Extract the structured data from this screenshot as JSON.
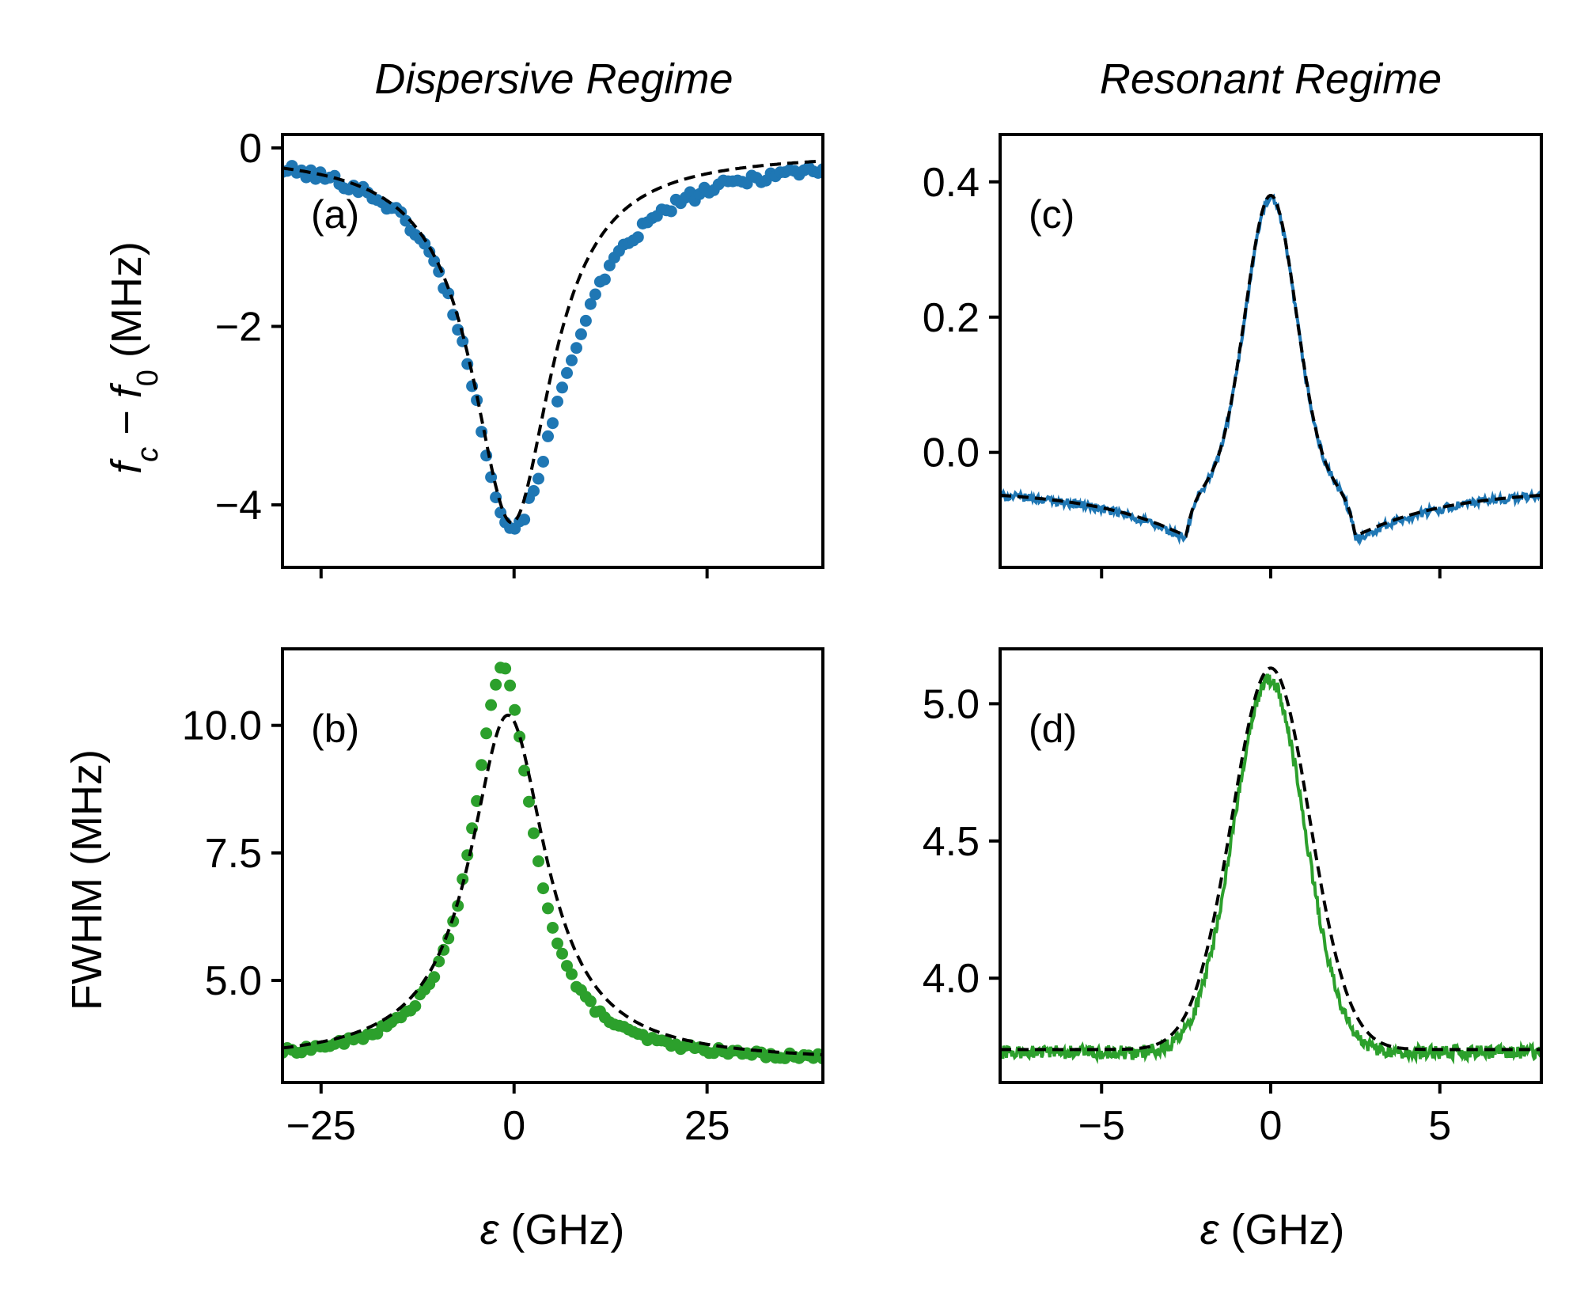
{
  "figure": {
    "titles": {
      "left": "Dispersive Regime",
      "right": "Resonant Regime"
    },
    "ylabel_top": "f_c − f_0 (MHz)",
    "ylabel_top_parts": {
      "f1": "f",
      "s1": "c",
      "minus": " − ",
      "f2": "f",
      "s2": "0",
      "unit": " (MHz)"
    },
    "ylabel_bottom": "FWHM (MHz)",
    "xlabel_left": "ε (GHz)",
    "xlabel_right": "ε (GHz)",
    "xlabel_parts": {
      "symbol": "ε",
      "unit": " (GHz)"
    }
  },
  "colors": {
    "blue": "#1f77b4",
    "green": "#2ca02c",
    "fit": "#000000"
  },
  "chart_data": [
    {
      "id": "a",
      "panel_label": "(a)",
      "type": "scatter",
      "title": "Dispersive Regime",
      "xlabel": "",
      "ylabel": "f_c − f_0 (MHz)",
      "xlim": [
        -30,
        40
      ],
      "ylim": [
        -4.7,
        0.15
      ],
      "xticks": [
        -25,
        0,
        25
      ],
      "yticks": [
        0,
        -2,
        -4
      ],
      "ytick_labels": [
        "0",
        "−2",
        "−4"
      ],
      "show_xticklabels": false,
      "series": [
        {
          "name": "measured",
          "kind": "points",
          "color": "blue",
          "model": "lorentzian_dip",
          "params": {
            "x0": -0.3,
            "fwhm": 13.0,
            "depth": 4.2,
            "offset": -0.05,
            "skew": 0.9
          },
          "x_range": [
            -30,
            40
          ],
          "n": 115,
          "noise": 0.06
        },
        {
          "name": "fit",
          "kind": "dashed",
          "color": "fit",
          "model": "lorentzian_dip",
          "params": {
            "x0": -0.3,
            "fwhm": 12.5,
            "depth": 4.15,
            "offset": -0.05,
            "skew": 0.0
          },
          "x_range": [
            -30,
            40
          ]
        }
      ]
    },
    {
      "id": "b",
      "panel_label": "(b)",
      "type": "scatter",
      "title": "",
      "xlabel": "ε (GHz)",
      "ylabel": "FWHM (MHz)",
      "xlim": [
        -30,
        40
      ],
      "ylim": [
        3.0,
        11.5
      ],
      "xticks": [
        -25,
        0,
        25
      ],
      "xtick_labels": [
        "−25",
        "0",
        "25"
      ],
      "yticks": [
        5.0,
        7.5,
        10.0
      ],
      "ytick_labels": [
        "5.0",
        "7.5",
        "10.0"
      ],
      "show_xticklabels": true,
      "series": [
        {
          "name": "measured",
          "kind": "points",
          "color": "green",
          "model": "lorentzian_peak",
          "params": {
            "x0": -1.5,
            "fwhm": 9.5,
            "height": 7.7,
            "offset": 3.4
          },
          "x_range": [
            -30,
            40
          ],
          "n": 115,
          "noise": 0.06
        },
        {
          "name": "fit",
          "kind": "dashed",
          "color": "fit",
          "model": "lorentzian_peak",
          "params": {
            "x0": -0.8,
            "fwhm": 12.0,
            "height": 6.8,
            "offset": 3.4
          },
          "x_range": [
            -30,
            40
          ]
        }
      ]
    },
    {
      "id": "c",
      "panel_label": "(c)",
      "type": "line",
      "title": "Resonant Regime",
      "xlabel": "",
      "ylabel": "",
      "xlim": [
        -8,
        8
      ],
      "ylim": [
        -0.17,
        0.47
      ],
      "xticks": [
        -5,
        0,
        5
      ],
      "yticks": [
        0.0,
        0.2,
        0.4
      ],
      "ytick_labels": [
        "0.0",
        "0.2",
        "0.4"
      ],
      "show_xticklabels": false,
      "series": [
        {
          "name": "measured",
          "kind": "solid",
          "color": "blue",
          "model": "resonant_shift",
          "params": {
            "baseline": -0.055,
            "peak": 0.43,
            "sigma": 0.75,
            "dip": -0.13,
            "dip_pos": 2.5,
            "dip_w": 2.6
          },
          "x_range": [
            -8,
            8
          ],
          "n": 500,
          "noise": 0.006
        },
        {
          "name": "fit",
          "kind": "dashed",
          "color": "fit",
          "model": "resonant_shift",
          "params": {
            "baseline": -0.055,
            "peak": 0.435,
            "sigma": 0.75,
            "dip": -0.125,
            "dip_pos": 2.5,
            "dip_w": 2.6
          },
          "x_range": [
            -8,
            8
          ]
        }
      ]
    },
    {
      "id": "d",
      "panel_label": "(d)",
      "type": "line",
      "title": "",
      "xlabel": "ε (GHz)",
      "ylabel": "",
      "xlim": [
        -8,
        8
      ],
      "ylim": [
        3.62,
        5.2
      ],
      "xticks": [
        -5,
        0,
        5
      ],
      "xtick_labels": [
        "−5",
        "0",
        "5"
      ],
      "yticks": [
        4.0,
        4.5,
        5.0
      ],
      "ytick_labels": [
        "4.0",
        "4.5",
        "5.0"
      ],
      "show_xticklabels": true,
      "series": [
        {
          "name": "measured",
          "kind": "solid",
          "color": "green",
          "model": "gauss_peak",
          "params": {
            "x0": -0.05,
            "sigma": 1.05,
            "height": 1.36,
            "offset": 3.73
          },
          "x_range": [
            -8,
            8
          ],
          "n": 600,
          "noise": 0.025
        },
        {
          "name": "fit",
          "kind": "dashed",
          "color": "fit",
          "model": "gauss_peak",
          "params": {
            "x0": 0.0,
            "sigma": 1.15,
            "height": 1.39,
            "offset": 3.74
          },
          "x_range": [
            -8,
            8
          ]
        }
      ]
    }
  ]
}
